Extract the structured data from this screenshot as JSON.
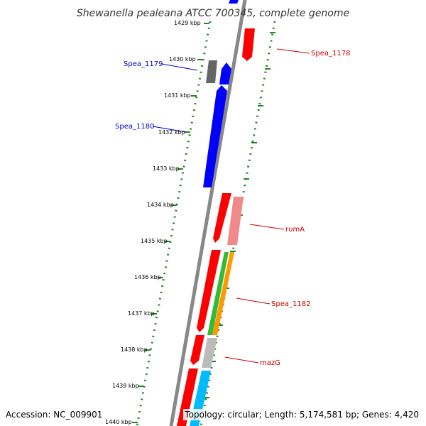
{
  "title": "Shewanella pealeana ATCC 700345, complete genome",
  "accession_text": "Accession: NC_009901",
  "topology_text": "Topology: circular; Length: 5,174,581 bp; Genes: 4,420",
  "ticks": [
    "1429 kbp",
    "1430 kbp",
    "1431 kbp",
    "1432 kbp",
    "1433 kbp",
    "1434 kbp",
    "1435 kbp",
    "1436 kbp",
    "1437 kbp",
    "1438 kbp",
    "1439 kbp",
    "1440 kbp"
  ],
  "gene_labels": [
    {
      "text": "Spea_1179",
      "color": "#0000cc"
    },
    {
      "text": "Spea_1180",
      "color": "#0000cc"
    },
    {
      "text": "Spea_1178",
      "color": "#cc0000"
    },
    {
      "text": "rumA",
      "color": "#cc0000"
    },
    {
      "text": "Spea_1182",
      "color": "#cc0000"
    },
    {
      "text": "mazG",
      "color": "#cc0000"
    }
  ],
  "colors": {
    "forward_cds": "#ff0000",
    "reverse_cds": "#0000ff",
    "pink_cds": "#f08a8a",
    "green_cds": "#33bb33",
    "orange_cds": "#ff9900",
    "gray_cds": "#bbbbbb",
    "darkgray_cds": "#666666",
    "cyan_cds": "#00bbff",
    "tick_dots": "#228822",
    "backbone": "#888888"
  }
}
